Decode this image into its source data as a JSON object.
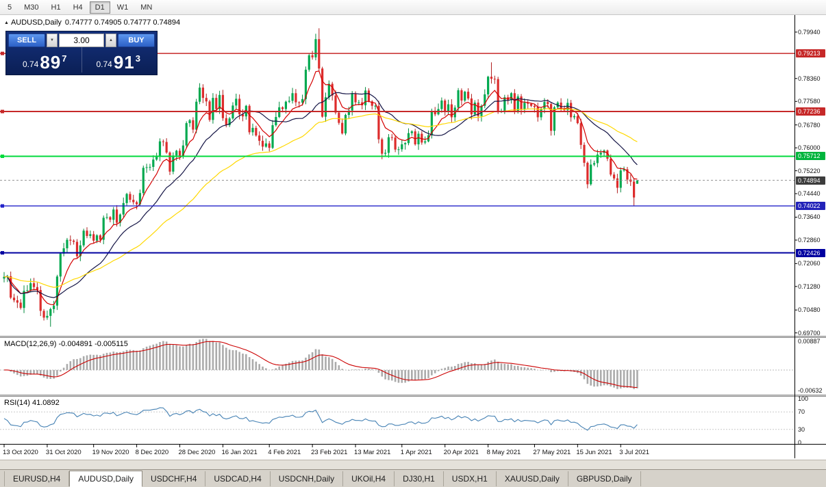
{
  "toolbar": {
    "timeframes": [
      {
        "label": "5",
        "active": false
      },
      {
        "label": "M30",
        "active": false
      },
      {
        "label": "H1",
        "active": false
      },
      {
        "label": "H4",
        "active": false
      },
      {
        "label": "D1",
        "active": true
      },
      {
        "label": "W1",
        "active": false
      },
      {
        "label": "MN",
        "active": false
      }
    ]
  },
  "icons": {
    "collapse_triangle": "▲",
    "spinner_up": "▲",
    "spinner_down": "▼"
  },
  "chart": {
    "title_symbol": "AUDUSD,Daily",
    "title_ohlc": "0.74777 0.74905 0.74777 0.74894"
  },
  "trade_panel": {
    "sell_label": "SELL",
    "buy_label": "BUY",
    "volume": "3.00",
    "sell_price": {
      "prefix": "0.74",
      "big": "89",
      "sup": "7"
    },
    "buy_price": {
      "prefix": "0.74",
      "big": "91",
      "sup": "3"
    }
  },
  "indicators": {
    "macd": {
      "name": "MACD(12,26,9)",
      "values": "-0.004891 -0.005115",
      "scale_max": "0.00887",
      "scale_min": "-0.00632"
    },
    "rsi": {
      "name": "RSI(14)",
      "value": "41.0892",
      "scale": [
        "100",
        "70",
        "30",
        "0"
      ]
    }
  },
  "price_scale": {
    "plain_labels": [
      "0.79940",
      "0.78360",
      "0.77580",
      "0.76780",
      "0.76000",
      "0.75220",
      "0.74440",
      "0.73640",
      "0.72860",
      "0.72060",
      "0.71280",
      "0.70480",
      "0.69700"
    ],
    "tag_labels": [
      {
        "value": "0.79213",
        "bg": "#C62828"
      },
      {
        "value": "0.77236",
        "bg": "#C62828"
      },
      {
        "value": "0.75712",
        "bg": "#00B43C"
      },
      {
        "value": "0.74894",
        "bg": "#3C3C3C",
        "current": true
      },
      {
        "value": "0.74022",
        "bg": "#2222B8"
      },
      {
        "value": "0.72426",
        "bg": "#0000A0"
      }
    ]
  },
  "tabs": [
    {
      "label": "EURUSD,H4",
      "active": false
    },
    {
      "label": "AUDUSD,Daily",
      "active": true
    },
    {
      "label": "USDCHF,H4",
      "active": false
    },
    {
      "label": "USDCAD,H4",
      "active": false
    },
    {
      "label": "USDCNH,Daily",
      "active": false
    },
    {
      "label": "UKOil,H4",
      "active": false
    },
    {
      "label": "DJ30,H1",
      "active": false
    },
    {
      "label": "USDX,H1",
      "active": false
    },
    {
      "label": "XAUUSD,Daily",
      "active": false
    },
    {
      "label": "GBPUSD,Daily",
      "active": false
    }
  ],
  "chart_data": {
    "type": "candlestick",
    "symbol": "AUDUSD",
    "timeframe": "Daily",
    "price_range": {
      "top": 0.8052,
      "bottom": 0.696
    },
    "current_price": 0.74894,
    "last_candle": {
      "open": 0.74777,
      "high": 0.74905,
      "low": 0.74777,
      "close": 0.74894
    },
    "closes": [
      0.7161,
      0.7163,
      0.709,
      0.7081,
      0.7073,
      0.7055,
      0.7113,
      0.7115,
      0.7139,
      0.7126,
      0.7116,
      0.7045,
      0.7022,
      0.7028,
      0.7051,
      0.7063,
      0.7162,
      0.724,
      0.7258,
      0.7287,
      0.7284,
      0.728,
      0.7231,
      0.7268,
      0.7318,
      0.73,
      0.7306,
      0.7284,
      0.7302,
      0.7287,
      0.7362,
      0.7364,
      0.7355,
      0.739,
      0.7345,
      0.7373,
      0.7412,
      0.7443,
      0.7423,
      0.7415,
      0.7408,
      0.7446,
      0.7532,
      0.7534,
      0.7535,
      0.756,
      0.757,
      0.7622,
      0.762,
      0.7584,
      0.7519,
      0.7574,
      0.759,
      0.7572,
      0.7608,
      0.7684,
      0.7694,
      0.7662,
      0.7757,
      0.7805,
      0.777,
      0.7758,
      0.7695,
      0.777,
      0.7732,
      0.778,
      0.7701,
      0.7677,
      0.77,
      0.7744,
      0.7767,
      0.7714,
      0.7707,
      0.7743,
      0.7653,
      0.7668,
      0.7642,
      0.7624,
      0.7604,
      0.7615,
      0.76,
      0.7677,
      0.7705,
      0.7738,
      0.7732,
      0.7757,
      0.776,
      0.7786,
      0.7755,
      0.7754,
      0.7766,
      0.7866,
      0.7915,
      0.7908,
      0.797,
      0.787,
      0.7706,
      0.7772,
      0.7818,
      0.7778,
      0.772,
      0.7685,
      0.7649,
      0.7712,
      0.7727,
      0.7784,
      0.7755,
      0.7755,
      0.7745,
      0.7795,
      0.7758,
      0.7743,
      0.7743,
      0.7629,
      0.758,
      0.7583,
      0.7636,
      0.7635,
      0.7594,
      0.7595,
      0.7612,
      0.7616,
      0.765,
      0.7656,
      0.7612,
      0.7648,
      0.7618,
      0.7622,
      0.7643,
      0.7723,
      0.7714,
      0.7732,
      0.7761,
      0.7723,
      0.7748,
      0.7704,
      0.7737,
      0.7796,
      0.7761,
      0.7791,
      0.7768,
      0.7714,
      0.7754,
      0.7708,
      0.7743,
      0.7782,
      0.7842,
      0.7835,
      0.7834,
      0.7725,
      0.7725,
      0.7772,
      0.7763,
      0.7786,
      0.7723,
      0.7775,
      0.773,
      0.7754,
      0.775,
      0.7743,
      0.7739,
      0.7704,
      0.7732,
      0.7756,
      0.7749,
      0.7658,
      0.7738,
      0.7754,
      0.7735,
      0.7728,
      0.7753,
      0.7704,
      0.7708,
      0.7684,
      0.761,
      0.7549,
      0.7476,
      0.7543,
      0.7548,
      0.7577,
      0.7583,
      0.7591,
      0.7563,
      0.7509,
      0.7496,
      0.7464,
      0.7523,
      0.7527,
      0.7492,
      0.7485,
      0.7431,
      0.74894
    ],
    "wick_overrides": {
      "14": {
        "low": 0.6991
      },
      "59": {
        "high": 0.782
      },
      "95": {
        "high": 0.8007
      },
      "147": {
        "high": 0.7891
      },
      "176": {
        "low": 0.7462
      },
      "190": {
        "low": 0.7402
      }
    },
    "x_labels": [
      {
        "text": "13 Oct 2020",
        "bar": 0
      },
      {
        "text": "31 Oct 2020",
        "bar": 13
      },
      {
        "text": "19 Nov 2020",
        "bar": 27
      },
      {
        "text": "8 Dec 2020",
        "bar": 40
      },
      {
        "text": "28 Dec 2020",
        "bar": 53
      },
      {
        "text": "16 Jan 2021",
        "bar": 66
      },
      {
        "text": "4 Feb 2021",
        "bar": 80
      },
      {
        "text": "23 Feb 2021",
        "bar": 93
      },
      {
        "text": "13 Mar 2021",
        "bar": 106
      },
      {
        "text": "1 Apr 2021",
        "bar": 120
      },
      {
        "text": "20 Apr 2021",
        "bar": 133
      },
      {
        "text": "8 May 2021",
        "bar": 146
      },
      {
        "text": "27 May 2021",
        "bar": 160
      },
      {
        "text": "15 Jun 2021",
        "bar": 173
      },
      {
        "text": "3 Jul 2021",
        "bar": 186
      }
    ],
    "h_lines": [
      {
        "price": 0.79213,
        "color": "#C62828",
        "width": 1.4
      },
      {
        "price": 0.77236,
        "color": "#C62828",
        "width": 2
      },
      {
        "price": 0.75712,
        "color": "#00DA3C",
        "width": 2
      },
      {
        "price": 0.74022,
        "color": "#2222C9",
        "width": 1.4
      },
      {
        "price": 0.72426,
        "color": "#0000A0",
        "width": 2
      }
    ],
    "moving_averages": [
      {
        "type": "ema",
        "period": 8,
        "color": "#D40000"
      },
      {
        "type": "sma",
        "period": 20,
        "color": "#141445"
      },
      {
        "type": "ema",
        "period": 50,
        "color": "#FFD800"
      }
    ],
    "candle_colors": {
      "up": "#00A94F",
      "down": "#DD2C2C",
      "up_wick": "#008A3C",
      "down_wick": "#B01E1E"
    },
    "macd": {
      "fast": 12,
      "slow": 26,
      "signal": 9,
      "range_top": 0.0095,
      "range_bottom": -0.0072,
      "histogram_color": "#ABABAB",
      "signal_color": "#CC0000"
    },
    "rsi": {
      "period": 14,
      "color": "#4682B4",
      "levels": [
        70,
        30
      ]
    }
  }
}
